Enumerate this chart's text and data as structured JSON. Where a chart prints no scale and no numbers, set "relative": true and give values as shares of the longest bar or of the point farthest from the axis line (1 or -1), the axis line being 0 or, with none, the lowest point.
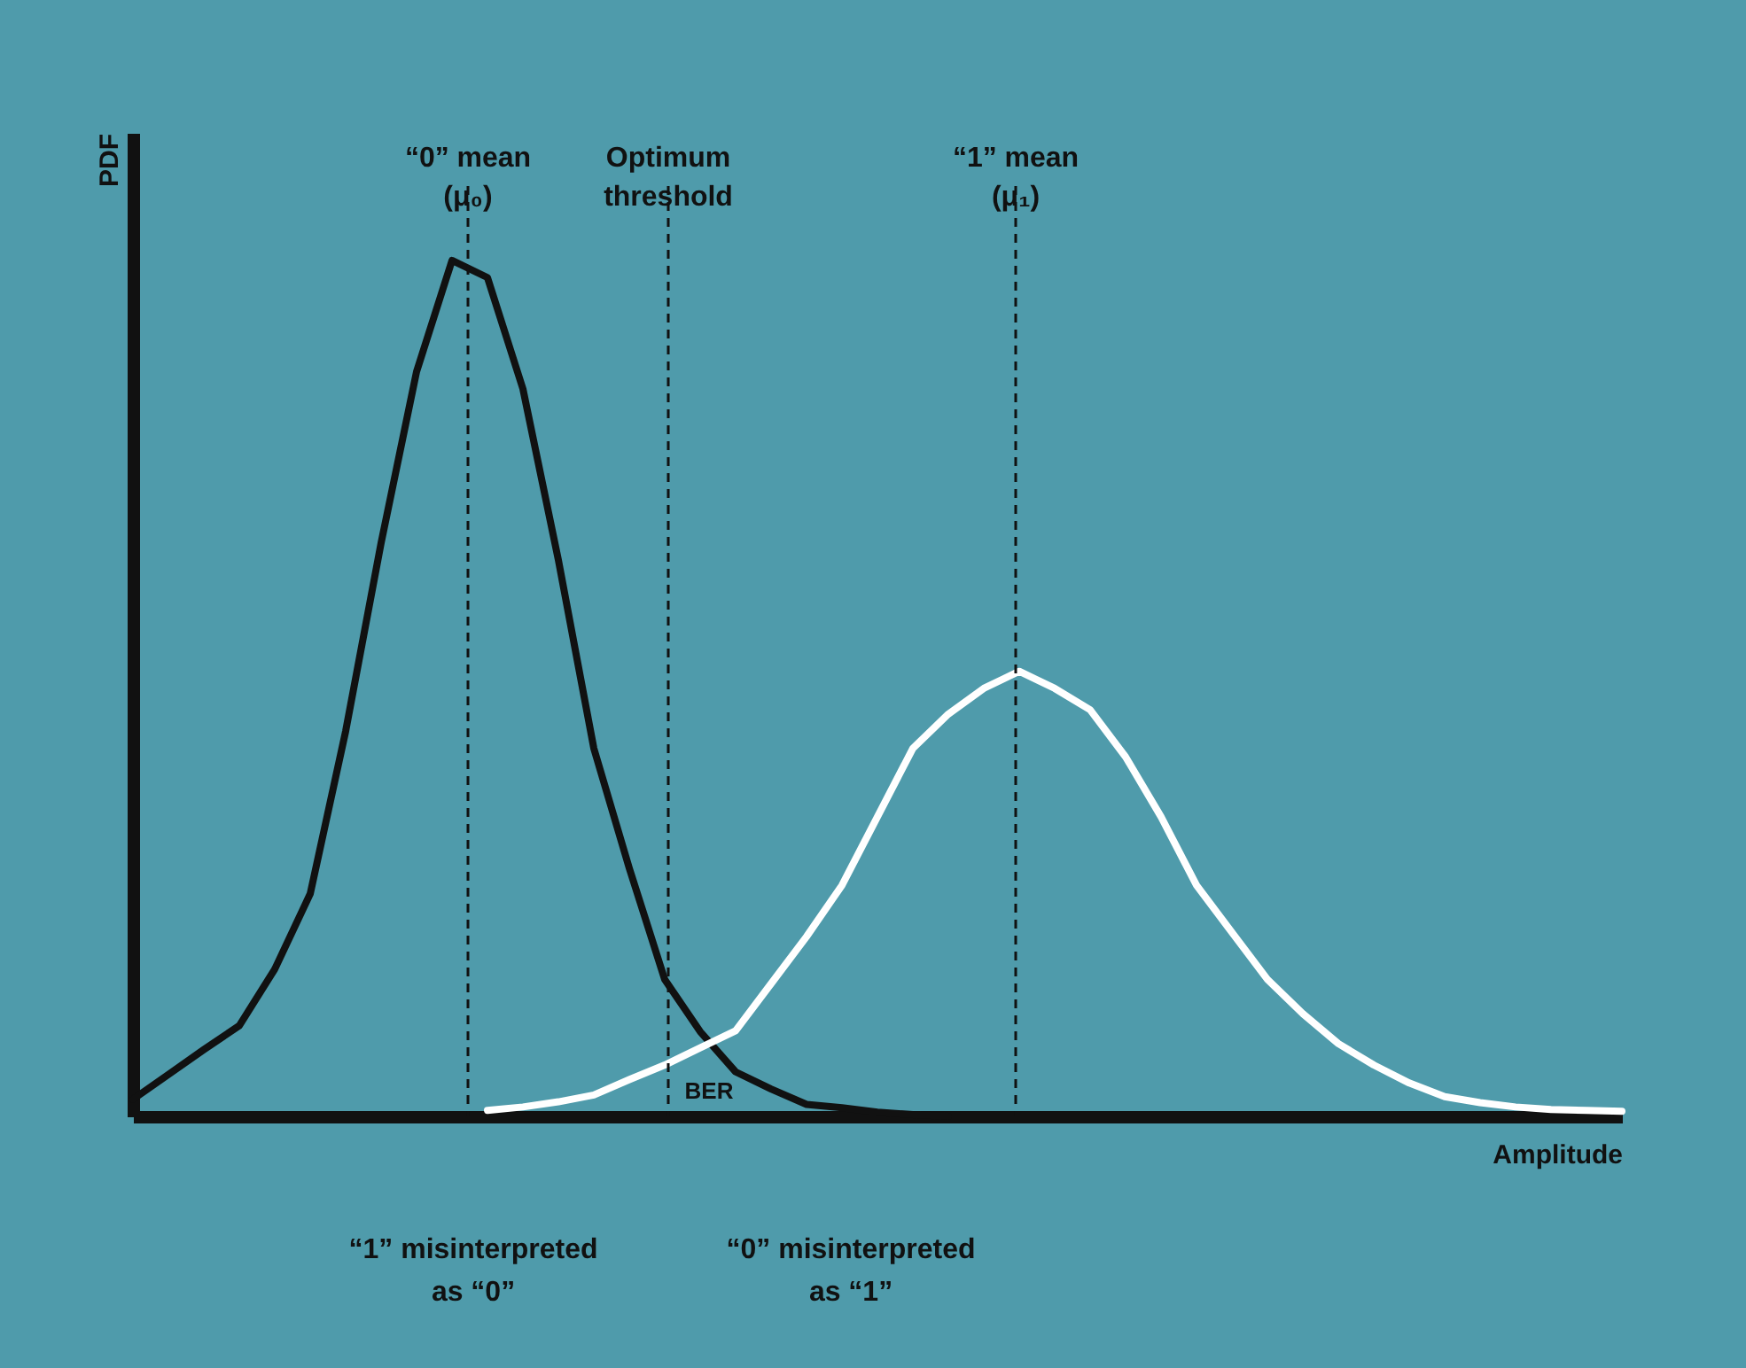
{
  "chart_data": {
    "type": "line",
    "relative": true,
    "xlabel": "Amplitude",
    "ylabel": "PDF",
    "tick_labels": false,
    "grid": false,
    "marker": "none",
    "line_style": "solid",
    "categories": [
      null,
      null,
      null,
      null,
      null,
      null,
      null,
      null,
      null,
      null,
      null,
      null,
      null,
      null,
      null,
      null,
      null,
      null,
      null,
      null,
      null,
      null,
      null,
      null,
      null,
      null,
      null,
      null,
      null,
      null,
      null,
      null,
      null,
      null,
      null,
      null,
      null,
      null,
      null,
      null,
      null,
      null,
      null
    ],
    "series": [
      {
        "color": "#111111",
        "values": [
          0.02,
          0.049,
          0.078,
          0.106,
          0.172,
          0.26,
          0.45,
          0.67,
          0.87,
          1.0,
          0.98,
          0.85,
          0.65,
          0.43,
          0.29,
          0.16,
          0.099,
          0.052,
          0.032,
          0.014,
          0.01,
          0.005,
          0.002,
          0,
          null,
          null,
          null,
          null,
          null,
          null,
          null,
          null,
          null,
          null,
          null,
          null,
          null,
          null,
          null,
          null,
          null,
          null,
          null
        ]
      },
      {
        "color": "#ffffff",
        "values": [
          null,
          null,
          null,
          null,
          null,
          null,
          null,
          null,
          null,
          null,
          0.007,
          0.011,
          0.017,
          0.025,
          0.043,
          0.06,
          0.08,
          0.1,
          0.155,
          0.21,
          0.27,
          0.35,
          0.43,
          0.47,
          0.5,
          0.52,
          0.5,
          0.475,
          0.42,
          0.35,
          0.27,
          0.215,
          0.16,
          0.12,
          0.085,
          0.06,
          0.039,
          0.023,
          0.016,
          0.011,
          0.008,
          0.007,
          0.006
        ]
      }
    ],
    "annotations": [
      "“0” mean\n(μ₀)",
      "Optimum\nthreshold",
      "“1” mean\n(μ₁)",
      "BER",
      "“1” misinterpreted\nas “0”",
      "“0” misinterpreted\nas “1”"
    ]
  }
}
